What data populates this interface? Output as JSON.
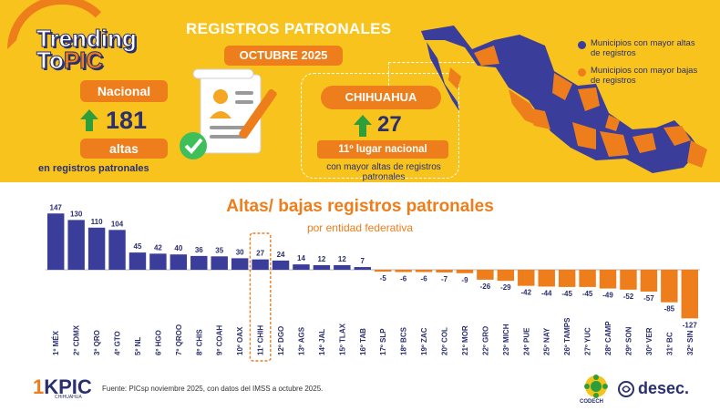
{
  "header": {
    "brand_line1": "Trending",
    "brand_line2_a": "To",
    "brand_line2_b": "PIC",
    "title": "REGISTROS PATRONALES",
    "period": "OCTUBRE 2025",
    "national": {
      "label": "Nacional",
      "value": "181",
      "badge": "altas",
      "caption": "en registros patronales"
    },
    "state": {
      "name": "CHIHUAHUA",
      "value": "27",
      "rank": "11º lugar nacional",
      "caption": "con mayor altas de registros patronales"
    },
    "map_legend": [
      {
        "label": "Municipios con mayor altas de registros",
        "color": "#3a3d9a"
      },
      {
        "label": "Municipios con mayor bajas de registros",
        "color": "#ee7d1b"
      }
    ]
  },
  "chart_data": {
    "type": "bar",
    "title": "Altas/ bajas registros patronales",
    "subtitle": "por entidad federativa",
    "categories": [
      "1º MÉX",
      "2º CDMX",
      "3º QRO",
      "4º GTO",
      "5º NL",
      "6º HGO",
      "7º QROO",
      "8º CHIS",
      "9º COAH",
      "10º OAX",
      "11º CHIH",
      "12º DGO",
      "13º AGS",
      "14º JAL",
      "15º TLAX",
      "16º TAB",
      "17º SLP",
      "18º BCS",
      "19º ZAC",
      "20º COL",
      "21º MOR",
      "22º GRO",
      "23º MICH",
      "24º PUE",
      "25º NAY",
      "26º TAMPS",
      "27º YUC",
      "28º CAMP",
      "29º SON",
      "30º VER",
      "31º BC",
      "32º SIN"
    ],
    "values": [
      147,
      130,
      110,
      104,
      45,
      42,
      40,
      36,
      35,
      30,
      27,
      24,
      14,
      12,
      12,
      7,
      -5,
      -6,
      -6,
      -7,
      -9,
      -26,
      -29,
      -42,
      -44,
      -45,
      -45,
      -49,
      -52,
      -57,
      -85,
      -127
    ],
    "highlight": "11º CHIH",
    "colors": {
      "positive": "#3a3d9a",
      "negative": "#ee7d1b",
      "highlight": "#ee7d1b"
    }
  },
  "footer": {
    "logo_a": "1",
    "logo_b": "KPIC",
    "logo_sub": "CHIHUAHUA",
    "source": "Fuente:  PICsp noviembre 2025, con datos del IMSS a octubre 2025.",
    "codech": "CODECH",
    "desec": "desec."
  }
}
